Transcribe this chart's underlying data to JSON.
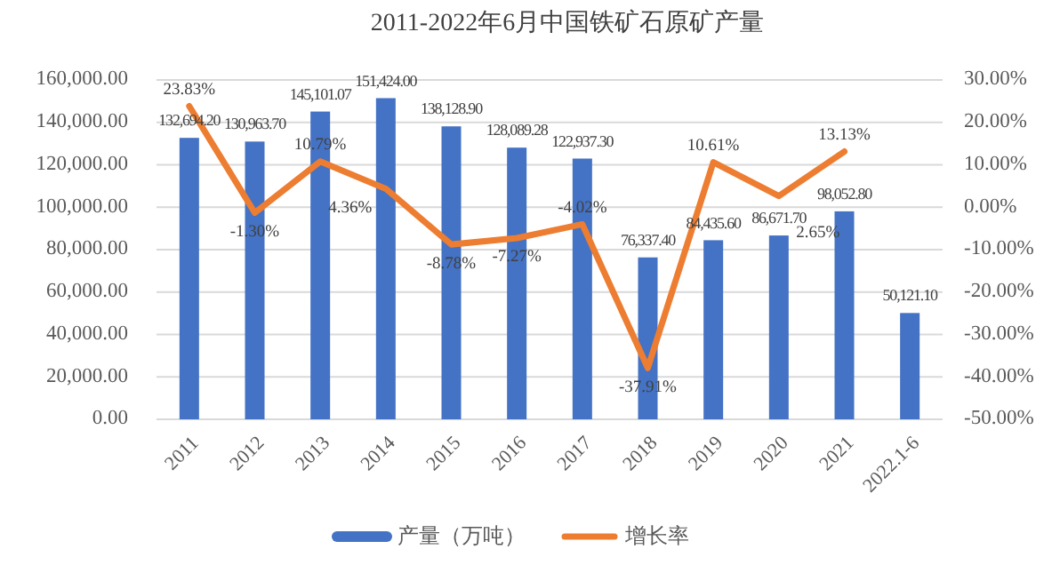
{
  "chart_data": {
    "type": "bar",
    "title": "2011-2022年6月中国铁矿石原矿产量",
    "categories": [
      "2011",
      "2012",
      "2013",
      "2014",
      "2015",
      "2016",
      "2017",
      "2018",
      "2019",
      "2020",
      "2021",
      "2022.1-6"
    ],
    "series": [
      {
        "name": "产量（万吨）",
        "color": "#4472c4",
        "values": [
          132694.2,
          130963.7,
          145101.07,
          151424,
          138128.9,
          128089.28,
          122937.3,
          76337.4,
          84435.6,
          86671.7,
          98052.8,
          50121.1
        ],
        "value_labels": [
          "132,694.20",
          "130,963.70",
          "145,101.07",
          "151,424.00",
          "138,128.90",
          "128,089.28",
          "122,937.30",
          "76,337.40",
          "84,435.60",
          "86,671.70",
          "98,052.80",
          "50,121.10"
        ]
      },
      {
        "name": "增长率",
        "type": "line",
        "axis": "y2",
        "color": "#ed7d31",
        "values": [
          23.83,
          -1.3,
          10.79,
          4.36,
          -8.78,
          -7.27,
          -4.02,
          -37.91,
          10.61,
          2.65,
          13.13,
          null
        ],
        "value_labels": [
          "23.83%",
          "-1.30%",
          "10.79%",
          "4.36%",
          "-8.78%",
          "-7.27%",
          "-4.02%",
          "-37.91%",
          "10.61%",
          "2.65%",
          "13.13%",
          null
        ]
      }
    ],
    "ylim": [
      0,
      160000
    ],
    "yticks": [
      {
        "value": 0,
        "label": "0.00"
      },
      {
        "value": 20000,
        "label": "20,000.00"
      },
      {
        "value": 40000,
        "label": "40,000.00"
      },
      {
        "value": 60000,
        "label": "60,000.00"
      },
      {
        "value": 80000,
        "label": "80,000.00"
      },
      {
        "value": 100000,
        "label": "100,000.00"
      },
      {
        "value": 120000,
        "label": "120,000.00"
      },
      {
        "value": 140000,
        "label": "140,000.00"
      },
      {
        "value": 160000,
        "label": "160,000.00"
      }
    ],
    "y2lim": [
      -50,
      30
    ],
    "y2ticks": [
      {
        "value": -50,
        "label": "-50.00%"
      },
      {
        "value": -40,
        "label": "-40.00%"
      },
      {
        "value": -30,
        "label": "-30.00%"
      },
      {
        "value": -20,
        "label": "-20.00%"
      },
      {
        "value": -10,
        "label": "-10.00%"
      },
      {
        "value": 0,
        "label": "0.00%"
      },
      {
        "value": 10,
        "label": "10.00%"
      },
      {
        "value": 20,
        "label": "20.00%"
      },
      {
        "value": 30,
        "label": "30.00%"
      }
    ],
    "grid": "y",
    "legend": "bottom"
  }
}
